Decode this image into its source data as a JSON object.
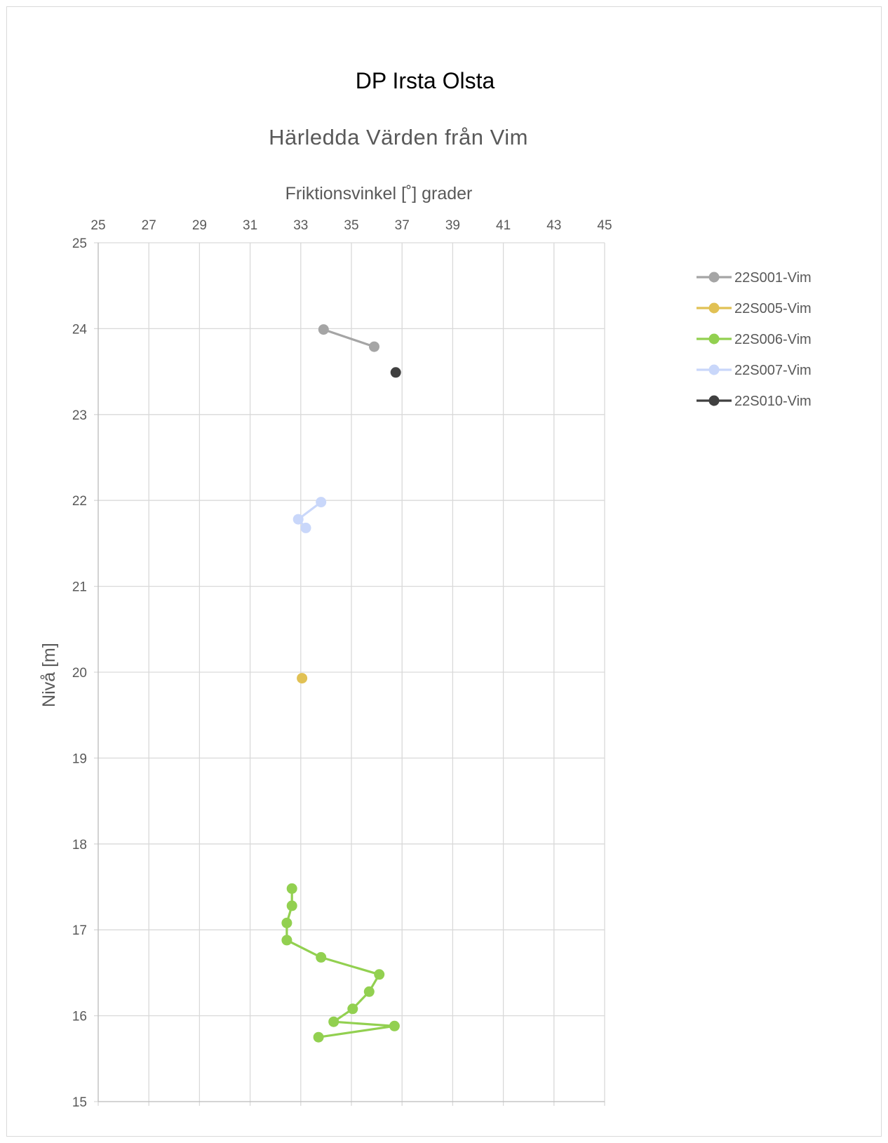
{
  "chart_data": {
    "type": "line",
    "title": "DP Irsta Olsta",
    "subtitle": "Härledda Värden från Vim",
    "xlabel": "Friktionsvinkel [˚] grader",
    "ylabel": "Nivå [m]",
    "xlim": [
      25,
      45
    ],
    "ylim": [
      15,
      25
    ],
    "x_ticks": [
      "25",
      "27",
      "29",
      "31",
      "33",
      "35",
      "37",
      "39",
      "41",
      "43",
      "45"
    ],
    "y_ticks": [
      "15",
      "16",
      "17",
      "18",
      "19",
      "20",
      "21",
      "22",
      "23",
      "24",
      "25"
    ],
    "x_axis_position": "top",
    "grid": true,
    "legend_position": "right",
    "series": [
      {
        "name": "22S001-Vim",
        "color": "#a5a5a5",
        "points": [
          [
            33.9,
            23.99
          ],
          [
            35.9,
            23.79
          ]
        ]
      },
      {
        "name": "22S005-Vim",
        "color": "#e1c154",
        "points": [
          [
            33.05,
            19.93
          ]
        ]
      },
      {
        "name": "22S006-Vim",
        "color": "#92d050",
        "points": [
          [
            32.65,
            17.48
          ],
          [
            32.65,
            17.28
          ],
          [
            32.45,
            17.08
          ],
          [
            32.45,
            16.88
          ],
          [
            33.8,
            16.68
          ],
          [
            36.1,
            16.48
          ],
          [
            35.7,
            16.28
          ],
          [
            35.05,
            16.08
          ],
          [
            34.3,
            15.93
          ],
          [
            36.7,
            15.88
          ],
          [
            33.7,
            15.75
          ]
        ]
      },
      {
        "name": "22S007-Vim",
        "color": "#c9d7fa",
        "points": [
          [
            33.8,
            21.98
          ],
          [
            32.9,
            21.78
          ],
          [
            33.2,
            21.68
          ]
        ]
      },
      {
        "name": "22S010-Vim",
        "color": "#404040",
        "points": [
          [
            36.75,
            23.49
          ]
        ]
      }
    ]
  }
}
